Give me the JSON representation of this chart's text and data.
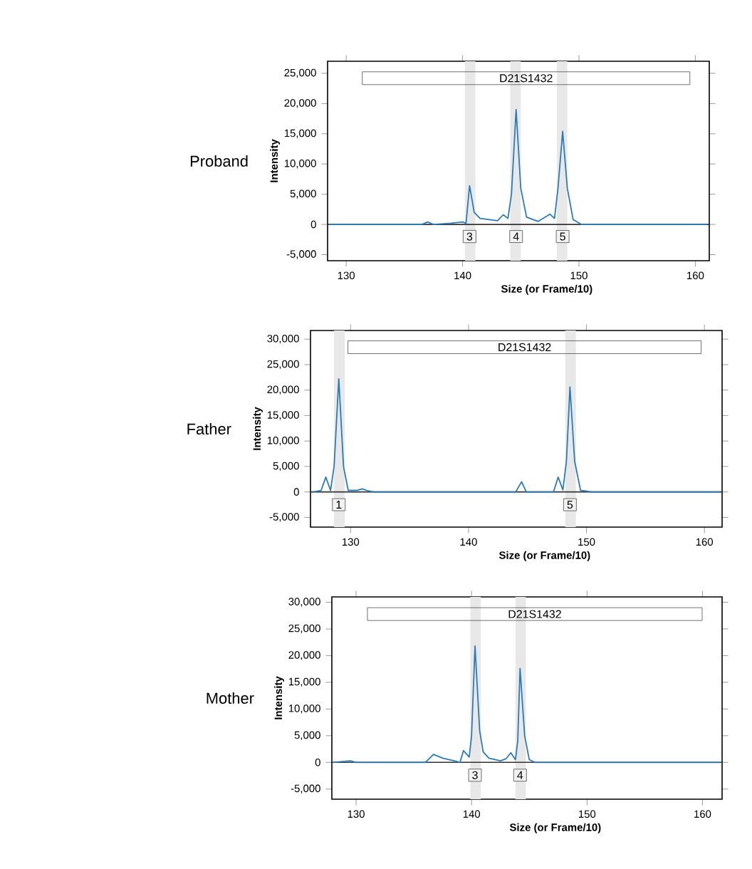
{
  "chart_data": [
    {
      "type": "line",
      "title": "Proband",
      "xlabel": "Size (or Frame/10)",
      "ylabel": "Intensity",
      "xlim": [
        128.4,
        161.2
      ],
      "ylim": [
        -6000,
        27000
      ],
      "xticks": [
        130,
        140,
        150,
        160
      ],
      "yticks": [
        {
          "value": -5000,
          "label": "-5,000"
        },
        0,
        {
          "value": 5000,
          "label": "5,000"
        },
        {
          "value": 10000,
          "label": "10,000"
        },
        {
          "value": 15000,
          "label": "15,000"
        },
        {
          "value": 20000,
          "label": "20,000"
        },
        {
          "value": 25000,
          "label": "25,000"
        }
      ],
      "grid": false,
      "marker": "none",
      "line_style": "solid",
      "ref_lines": [
        {
          "axis": "y",
          "value": 0,
          "color": "#333333"
        }
      ],
      "bands": [
        {
          "axis": "x",
          "from": 140.2,
          "to": 141.1,
          "color": "#e8e8e8"
        },
        {
          "axis": "x",
          "from": 144.1,
          "to": 145.0,
          "color": "#e8e8e8"
        },
        {
          "axis": "x",
          "from": 148.1,
          "to": 149.0,
          "color": "#e8e8e8"
        }
      ],
      "annotations": [
        "D21S1432",
        {
          "text": "3",
          "x": 140.6,
          "y": -2000
        },
        {
          "text": "4",
          "x": 144.6,
          "y": -2000
        },
        {
          "text": "5",
          "x": 148.6,
          "y": -2000
        }
      ],
      "series": [
        {
          "color": "#2b7bb9",
          "x": [
            128.5,
            129.5,
            131,
            132,
            136.5,
            137,
            137.5,
            139,
            140,
            140.3,
            140.6,
            141,
            141.5,
            143,
            143.5,
            143.9,
            144.2,
            144.6,
            145,
            145.5,
            146.5,
            147.5,
            147.9,
            148.2,
            148.6,
            149,
            149.5,
            150.2,
            161
          ],
          "values": [
            0,
            0,
            0,
            0,
            0,
            400,
            0,
            200,
            400,
            200,
            6400,
            2000,
            1000,
            600,
            1600,
            1000,
            5000,
            19000,
            6000,
            1200,
            500,
            1700,
            1000,
            6000,
            15400,
            6000,
            800,
            0,
            0
          ]
        }
      ]
    },
    {
      "type": "line",
      "title": "Father",
      "xlabel": "Size (or Frame/10)",
      "ylabel": "Intensity",
      "xlim": [
        126.6,
        161.5
      ],
      "ylim": [
        -6900,
        31700
      ],
      "xticks": [
        130,
        140,
        150,
        160
      ],
      "yticks": [
        {
          "value": -5000,
          "label": "-5,000"
        },
        0,
        {
          "value": 5000,
          "label": "5,000"
        },
        {
          "value": 10000,
          "label": "10,000"
        },
        {
          "value": 15000,
          "label": "15,000"
        },
        {
          "value": 20000,
          "label": "20,000"
        },
        {
          "value": 25000,
          "label": "25,000"
        },
        {
          "value": 30000,
          "label": "30,000"
        }
      ],
      "grid": false,
      "marker": "none",
      "line_style": "solid",
      "ref_lines": [
        {
          "axis": "y",
          "value": 0,
          "color": "#333333"
        }
      ],
      "bands": [
        {
          "axis": "x",
          "from": 128.6,
          "to": 129.5,
          "color": "#e8e8e8"
        },
        {
          "axis": "x",
          "from": 148.2,
          "to": 149.1,
          "color": "#e8e8e8"
        }
      ],
      "annotations": [
        "D21S1432",
        {
          "text": "1",
          "x": 129.0,
          "y": -2500
        },
        {
          "text": "5",
          "x": 148.6,
          "y": -2500
        }
      ],
      "series": [
        {
          "color": "#2b7bb9",
          "x": [
            126.8,
            127.5,
            127.9,
            128.3,
            128.6,
            129,
            129.4,
            129.8,
            130.5,
            131,
            131.5,
            132,
            144,
            144.5,
            144.9,
            147.2,
            147.6,
            148,
            148.3,
            148.6,
            149,
            149.5,
            150.5,
            161.3
          ],
          "values": [
            0,
            300,
            2900,
            300,
            5000,
            22200,
            5000,
            300,
            300,
            600,
            200,
            0,
            0,
            2000,
            0,
            0,
            2900,
            400,
            6000,
            20600,
            6000,
            300,
            0,
            0
          ]
        }
      ]
    },
    {
      "type": "line",
      "title": "Mother",
      "xlabel": "Size (or Frame/10)",
      "ylabel": "Intensity",
      "xlim": [
        127.9,
        161.7
      ],
      "ylim": [
        -6900,
        31000
      ],
      "xticks": [
        130,
        140,
        150,
        160
      ],
      "yticks": [
        {
          "value": -5000,
          "label": "-5,000"
        },
        0,
        {
          "value": 5000,
          "label": "5,000"
        },
        {
          "value": 10000,
          "label": "10,000"
        },
        {
          "value": 15000,
          "label": "15,000"
        },
        {
          "value": 20000,
          "label": "20,000"
        },
        {
          "value": 25000,
          "label": "25,000"
        },
        {
          "value": 30000,
          "label": "30,000"
        }
      ],
      "grid": false,
      "marker": "none",
      "line_style": "solid",
      "ref_lines": [
        {
          "axis": "y",
          "value": 0,
          "color": "#333333"
        }
      ],
      "bands": [
        {
          "axis": "x",
          "from": 139.9,
          "to": 140.8,
          "color": "#e8e8e8"
        },
        {
          "axis": "x",
          "from": 143.8,
          "to": 144.7,
          "color": "#e8e8e8"
        }
      ],
      "annotations": [
        "D21S1432",
        {
          "text": "3",
          "x": 140.3,
          "y": -2400
        },
        {
          "text": "4",
          "x": 144.2,
          "y": -2400
        }
      ],
      "series": [
        {
          "color": "#2b7bb9",
          "x": [
            128,
            129.5,
            130,
            131.5,
            136,
            136.7,
            137.5,
            138.5,
            139,
            139.3,
            139.8,
            140,
            140.3,
            140.7,
            141,
            141.5,
            142.5,
            143,
            143.4,
            143.8,
            144,
            144.2,
            144.6,
            145,
            145.5,
            161.5
          ],
          "values": [
            0,
            300,
            0,
            0,
            0,
            1500,
            800,
            300,
            0,
            2200,
            1000,
            5000,
            21800,
            6000,
            2000,
            800,
            300,
            700,
            1800,
            500,
            4000,
            17600,
            5000,
            500,
            0,
            0
          ]
        }
      ]
    }
  ]
}
